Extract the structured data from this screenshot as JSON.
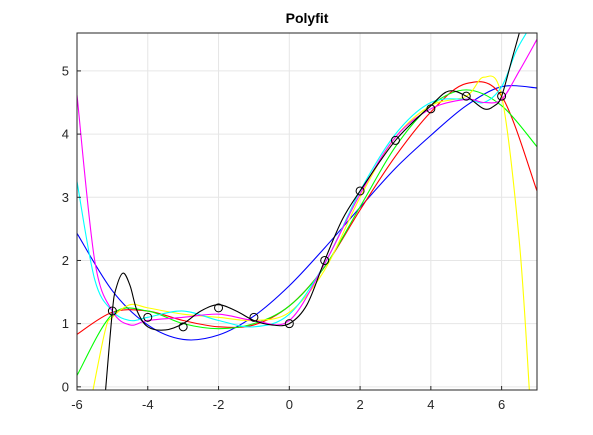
{
  "chart_data": {
    "type": "line",
    "title": "Polyfit",
    "xlabel": "",
    "ylabel": "",
    "xlim": [
      -6,
      7
    ],
    "ylim": [
      -0.05,
      5.6
    ],
    "grid": true,
    "x_ticks": [
      "-6",
      "-4",
      "-2",
      "0",
      "2",
      "4",
      "6"
    ],
    "y_ticks": [
      "0",
      "1",
      "2",
      "3",
      "4",
      "5"
    ],
    "data_points": {
      "x": [
        -5,
        -4,
        -3,
        -2,
        -1,
        0,
        1,
        2,
        3,
        4,
        5,
        6
      ],
      "y": [
        1.2,
        1.1,
        0.95,
        1.25,
        1.1,
        1.0,
        2.0,
        3.1,
        3.9,
        4.4,
        4.6,
        4.6
      ],
      "marker": "open-circle"
    },
    "series": [
      {
        "color": "#0000ff",
        "x": [
          -6,
          -5,
          -4,
          -3,
          -2,
          -1,
          0,
          1,
          2,
          3,
          4,
          5,
          6,
          7
        ],
        "y": [
          2.43,
          1.52,
          0.98,
          0.75,
          0.82,
          1.12,
          1.6,
          2.2,
          2.84,
          3.46,
          3.98,
          4.45,
          4.75,
          4.73
        ]
      },
      {
        "color": "#ff0000",
        "x": [
          -6,
          -5,
          -4,
          -3,
          -2,
          -1,
          0,
          1,
          2,
          3,
          4,
          5,
          6,
          7
        ],
        "y": [
          0.83,
          1.18,
          1.2,
          1.05,
          0.95,
          0.98,
          1.28,
          1.9,
          2.8,
          3.65,
          4.35,
          4.8,
          4.6,
          3.1
        ]
      },
      {
        "color": "#00ff00",
        "x": [
          -6,
          -5,
          -4,
          -3,
          -2,
          -1,
          0,
          1,
          2,
          3,
          4,
          5,
          6,
          7
        ],
        "y": [
          0.18,
          1.15,
          1.2,
          1.0,
          0.92,
          1.0,
          1.28,
          1.9,
          2.85,
          3.8,
          4.45,
          4.7,
          4.45,
          3.8
        ]
      },
      {
        "color": "#ffff00",
        "x": [
          -5.6,
          -5.2,
          -5,
          -4.5,
          -4,
          -3,
          -2,
          -1,
          0,
          1,
          2,
          3,
          4,
          5,
          5.5,
          6,
          6.5,
          6.8
        ],
        "y": [
          -0.2,
          0.9,
          1.1,
          1.3,
          1.25,
          1.15,
          1.1,
          1.05,
          1.18,
          1.85,
          3.0,
          3.95,
          4.45,
          4.6,
          4.9,
          4.6,
          2.3,
          -0.2
        ]
      },
      {
        "color": "#00ffff",
        "x": [
          -6,
          -5.5,
          -5,
          -4.5,
          -4,
          -3,
          -2,
          -1,
          0,
          1,
          2,
          3,
          4,
          5,
          5.5,
          6,
          6.4,
          6.7
        ],
        "y": [
          3.25,
          1.7,
          1.2,
          1.05,
          1.1,
          1.2,
          1.05,
          0.95,
          1.15,
          1.95,
          3.1,
          4.0,
          4.5,
          4.55,
          4.5,
          4.75,
          5.3,
          5.6
        ]
      },
      {
        "color": "#ff00ff",
        "x": [
          -6,
          -5.5,
          -5,
          -4.5,
          -4,
          -3,
          -2,
          -1,
          0,
          1,
          2,
          3,
          4,
          5,
          5.5,
          6,
          6.5,
          7
        ],
        "y": [
          4.62,
          2.0,
          1.2,
          0.98,
          1.05,
          1.1,
          1.15,
          1.05,
          1.05,
          1.95,
          3.05,
          3.95,
          4.4,
          4.55,
          4.5,
          4.55,
          5.0,
          5.5
        ]
      },
      {
        "color": "#000000",
        "x": [
          -5.2,
          -5.0,
          -4.9,
          -4.7,
          -4.5,
          -4.3,
          -4,
          -3.5,
          -3,
          -2.5,
          -2,
          -1.5,
          -1,
          -0.5,
          0,
          0.5,
          1,
          1.5,
          2,
          3,
          4,
          4.5,
          5,
          5.5,
          5.8,
          6,
          6.3,
          6.5,
          6.6
        ],
        "y": [
          -0.1,
          1.2,
          1.55,
          1.8,
          1.6,
          1.2,
          0.95,
          0.9,
          1.0,
          1.2,
          1.3,
          1.2,
          1.05,
          0.98,
          1.0,
          1.3,
          2.0,
          2.65,
          3.1,
          3.9,
          4.45,
          4.68,
          4.6,
          4.4,
          4.45,
          4.6,
          5.2,
          5.6,
          5.8
        ]
      }
    ]
  }
}
